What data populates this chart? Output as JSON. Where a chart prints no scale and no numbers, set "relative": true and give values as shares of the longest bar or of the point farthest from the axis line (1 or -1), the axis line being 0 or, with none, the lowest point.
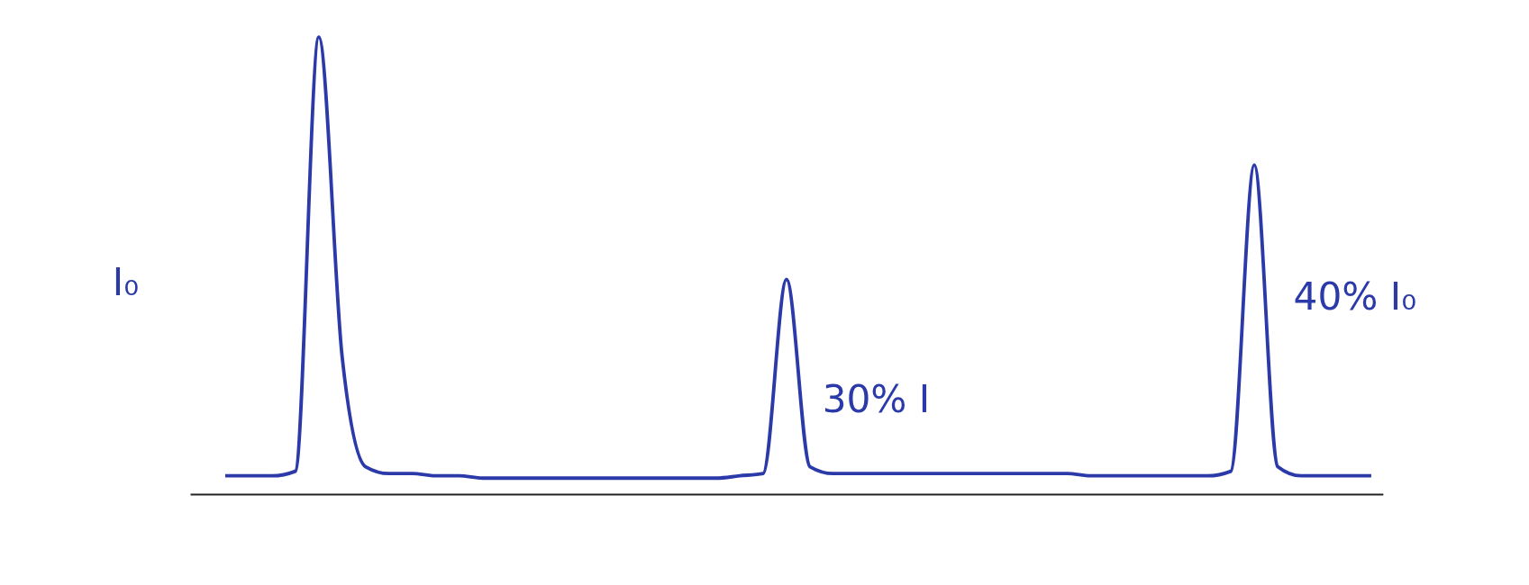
{
  "chart_data": {
    "type": "line",
    "relative": true,
    "categories": [
      null,
      null,
      null,
      null,
      null,
      null,
      null,
      null,
      null,
      null,
      null,
      null,
      null,
      null,
      null,
      null,
      null,
      null,
      null,
      null,
      null,
      null,
      null,
      null,
      null,
      null,
      null,
      null,
      null,
      null,
      null,
      null,
      null,
      null,
      null,
      null,
      null,
      null,
      null,
      null,
      null,
      null,
      null,
      null,
      null,
      null,
      null,
      null,
      null,
      null
    ],
    "series": [
      {
        "color": "#2b3aa8",
        "values": [
          0.04,
          0.04,
          0.04,
          0.05,
          1.0,
          0.3,
          0.06,
          0.045,
          0.045,
          0.04,
          0.04,
          0.035,
          0.035,
          0.035,
          0.035,
          0.035,
          0.035,
          0.035,
          0.035,
          0.035,
          0.035,
          0.035,
          0.04,
          0.045,
          0.47,
          0.06,
          0.045,
          0.045,
          0.045,
          0.045,
          0.045,
          0.045,
          0.045,
          0.045,
          0.045,
          0.045,
          0.045,
          0.04,
          0.04,
          0.04,
          0.04,
          0.04,
          0.04,
          0.05,
          0.72,
          0.06,
          0.04,
          0.04,
          0.04,
          0.04
        ]
      }
    ],
    "annotations": [
      "I₀",
      "30% I",
      "40% I₀"
    ]
  }
}
